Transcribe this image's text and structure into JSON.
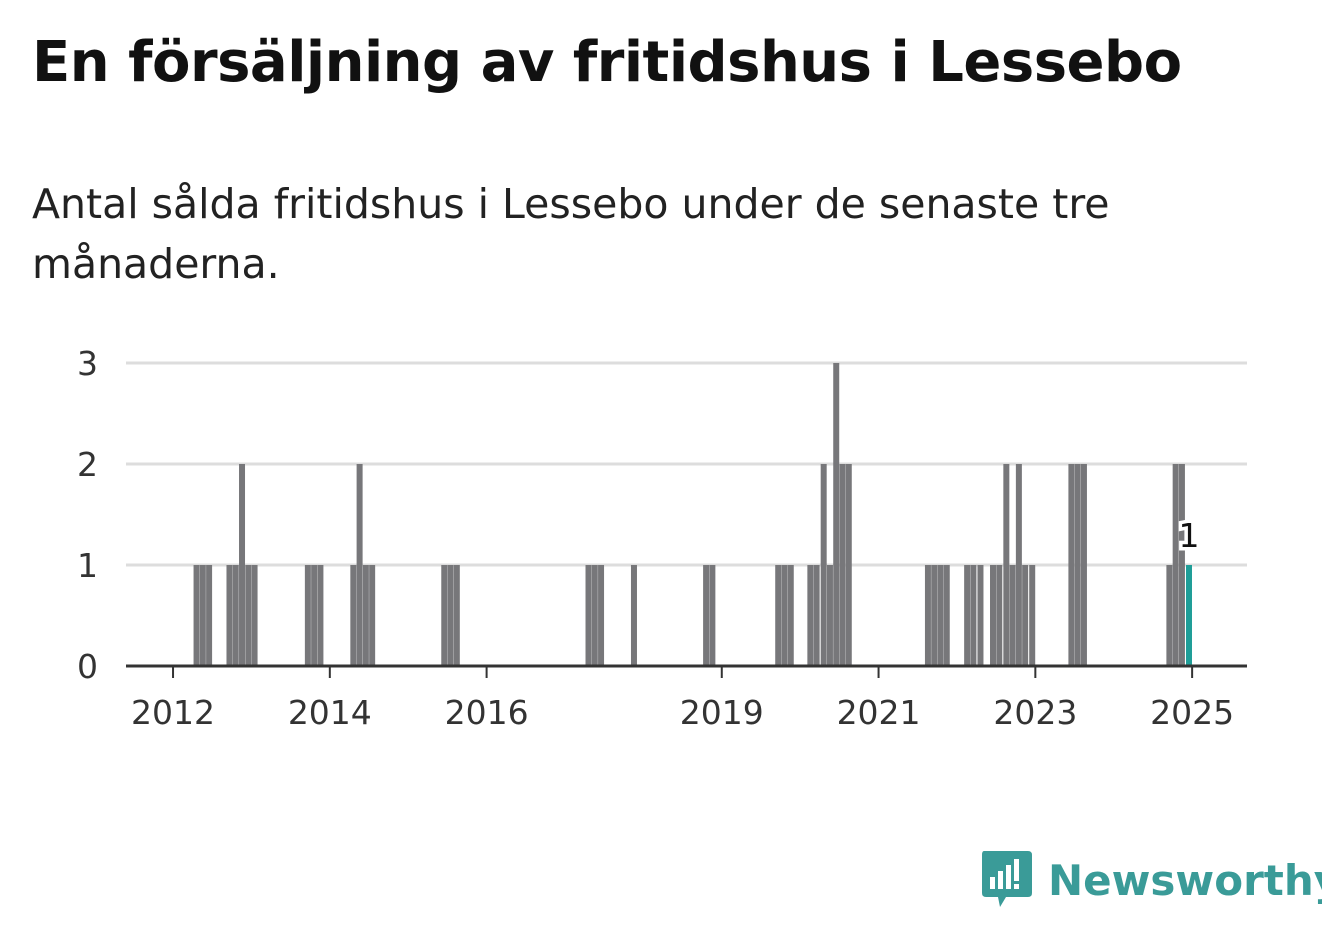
{
  "title": "En försäljning av fritidshus i Lessebo",
  "subtitle": "Antal sålda fritidshus i Lessebo under de senaste tre månaderna.",
  "brand": {
    "name": "Newsworthy"
  },
  "colors": {
    "bar": "#77777a",
    "highlight": "#1f9e98",
    "grid": "#dddddd",
    "axis": "#333333",
    "brand": "#3a9b98"
  },
  "chart_data": {
    "type": "bar",
    "ylim": [
      0,
      3
    ],
    "yticks": [
      0,
      1,
      2,
      3
    ],
    "xticks": [
      2012,
      2014,
      2016,
      2019,
      2021,
      2023,
      2025
    ],
    "xlim": [
      2011.4,
      2025.7
    ],
    "grid": true,
    "highlight_label": "1",
    "bars": [
      {
        "x": 2012.3,
        "value": 1
      },
      {
        "x": 2012.38,
        "value": 1
      },
      {
        "x": 2012.46,
        "value": 1
      },
      {
        "x": 2012.72,
        "value": 1
      },
      {
        "x": 2012.8,
        "value": 1
      },
      {
        "x": 2012.88,
        "value": 2
      },
      {
        "x": 2012.96,
        "value": 1
      },
      {
        "x": 2013.04,
        "value": 1
      },
      {
        "x": 2013.72,
        "value": 1
      },
      {
        "x": 2013.8,
        "value": 1
      },
      {
        "x": 2013.88,
        "value": 1
      },
      {
        "x": 2014.3,
        "value": 1
      },
      {
        "x": 2014.38,
        "value": 2
      },
      {
        "x": 2014.46,
        "value": 1
      },
      {
        "x": 2014.54,
        "value": 1
      },
      {
        "x": 2015.46,
        "value": 1
      },
      {
        "x": 2015.54,
        "value": 1
      },
      {
        "x": 2015.62,
        "value": 1
      },
      {
        "x": 2017.3,
        "value": 1
      },
      {
        "x": 2017.38,
        "value": 1
      },
      {
        "x": 2017.46,
        "value": 1
      },
      {
        "x": 2017.88,
        "value": 1
      },
      {
        "x": 2018.8,
        "value": 1
      },
      {
        "x": 2018.88,
        "value": 1
      },
      {
        "x": 2019.72,
        "value": 1
      },
      {
        "x": 2019.8,
        "value": 1
      },
      {
        "x": 2019.88,
        "value": 1
      },
      {
        "x": 2020.13,
        "value": 1
      },
      {
        "x": 2020.21,
        "value": 1
      },
      {
        "x": 2020.3,
        "value": 2
      },
      {
        "x": 2020.38,
        "value": 1
      },
      {
        "x": 2020.46,
        "value": 3
      },
      {
        "x": 2020.54,
        "value": 2
      },
      {
        "x": 2020.62,
        "value": 2
      },
      {
        "x": 2021.63,
        "value": 1
      },
      {
        "x": 2021.71,
        "value": 1
      },
      {
        "x": 2021.79,
        "value": 1
      },
      {
        "x": 2021.87,
        "value": 1
      },
      {
        "x": 2022.13,
        "value": 1
      },
      {
        "x": 2022.21,
        "value": 1
      },
      {
        "x": 2022.3,
        "value": 1
      },
      {
        "x": 2022.46,
        "value": 1
      },
      {
        "x": 2022.54,
        "value": 1
      },
      {
        "x": 2022.63,
        "value": 2
      },
      {
        "x": 2022.71,
        "value": 1
      },
      {
        "x": 2022.79,
        "value": 2
      },
      {
        "x": 2022.87,
        "value": 1
      },
      {
        "x": 2022.96,
        "value": 1
      },
      {
        "x": 2023.46,
        "value": 2
      },
      {
        "x": 2023.54,
        "value": 2
      },
      {
        "x": 2023.62,
        "value": 2
      },
      {
        "x": 2024.71,
        "value": 1
      },
      {
        "x": 2024.79,
        "value": 2
      },
      {
        "x": 2024.87,
        "value": 2
      },
      {
        "x": 2024.96,
        "value": 1,
        "highlight": true
      }
    ]
  }
}
